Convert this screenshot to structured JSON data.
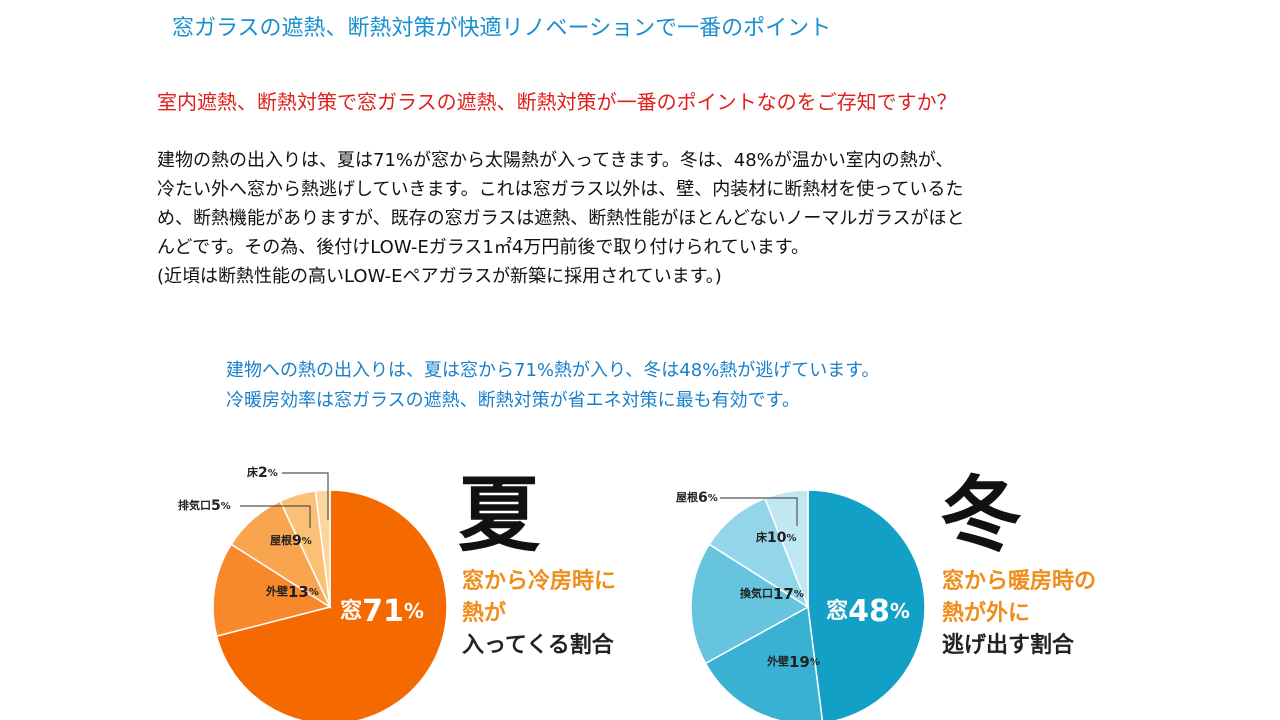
{
  "title": "窓ガラスの遮熱、断熱対策が快適リノベーションで一番のポイント",
  "subtitle": "室内遮熱、断熱対策で窓ガラスの遮熱、断熱対策が一番のポイントなのをご存知ですか？",
  "body_lines": [
    "建物の熱の出入りは、夏は71%が窓から太陽熱が入ってきます。冬は、48%が温かい室内の熱が、",
    "冷たい外へ窓から熱逃げしていきます。これは窓ガラス以外は、壁、内装材に断熱材を使っているた",
    "め、断熱機能がありますが、既存の窓ガラスは遮熱、断熱性能がほとんどないノーマルガラスがほと",
    "んどです。その為、後付けLOW-Eガラス1㎡4万円前後で取り付けられています。",
    "(近頃は断熱性能の高いLOW-Eペアガラスが新築に採用されています。)"
  ],
  "summary_lines": [
    "建物への熱の出入りは、夏は窓から71%熱が入り、冬は48%熱が逃げています。",
    "冷暖房効率は窓ガラスの遮熱、断熱対策が省エネ対策に最も有効です。"
  ],
  "summer": {
    "season_label": "夏",
    "desc_line1": "窓から冷房時に",
    "desc_line2": "熱が",
    "desc_line3": "入ってくる割合",
    "accent_color": "#f07010"
  },
  "winter": {
    "season_label": "冬",
    "desc_line1": "窓から暖房時の",
    "desc_line2": "熱が外に",
    "desc_line3": "逃げ出す割合",
    "accent_color": "#1aa0c8"
  },
  "chart_data": [
    {
      "type": "pie",
      "slices": [
        {
          "label": "窓",
          "value": 71,
          "display": "71",
          "unit": "%",
          "color": "#f56a00"
        },
        {
          "label": "外壁",
          "value": 13,
          "display": "13",
          "unit": "%",
          "color": "#f7892a"
        },
        {
          "label": "屋根",
          "value": 9,
          "display": "9",
          "unit": "%",
          "color": "#f9a54f"
        },
        {
          "label": "排気口",
          "value": 5,
          "display": "5",
          "unit": "%",
          "color": "#fbbf75"
        },
        {
          "label": "床",
          "value": 2,
          "display": "2",
          "unit": "%",
          "color": "#fcd59e"
        }
      ]
    },
    {
      "type": "pie",
      "slices": [
        {
          "label": "窓",
          "value": 48,
          "display": "48",
          "unit": "%",
          "color": "#12a0c6"
        },
        {
          "label": "外壁",
          "value": 19,
          "display": "19",
          "unit": "%",
          "color": "#39b1d3"
        },
        {
          "label": "換気口",
          "value": 17,
          "display": "17",
          "unit": "%",
          "color": "#66c4df"
        },
        {
          "label": "床",
          "value": 10,
          "display": "10",
          "unit": "%",
          "color": "#93d6ea"
        },
        {
          "label": "屋根",
          "value": 6,
          "display": "6",
          "unit": "%",
          "color": "#c1e7f3"
        }
      ]
    }
  ]
}
